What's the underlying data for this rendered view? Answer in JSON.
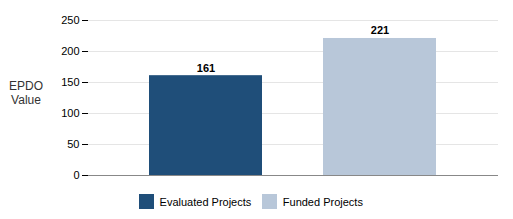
{
  "chart_data": {
    "type": "bar",
    "categories": [
      "Evaluated Projects",
      "Funded Projects"
    ],
    "values": [
      161,
      221
    ],
    "colors": [
      "#1F4E79",
      "#B8C7D9"
    ],
    "ylabel": "EPDO\nValue",
    "ylim": [
      0,
      250
    ],
    "yticks": [
      0,
      50,
      100,
      150,
      200,
      250
    ],
    "grid": true,
    "legend": "bottom",
    "data_labels": true,
    "tick_labels": "y"
  }
}
